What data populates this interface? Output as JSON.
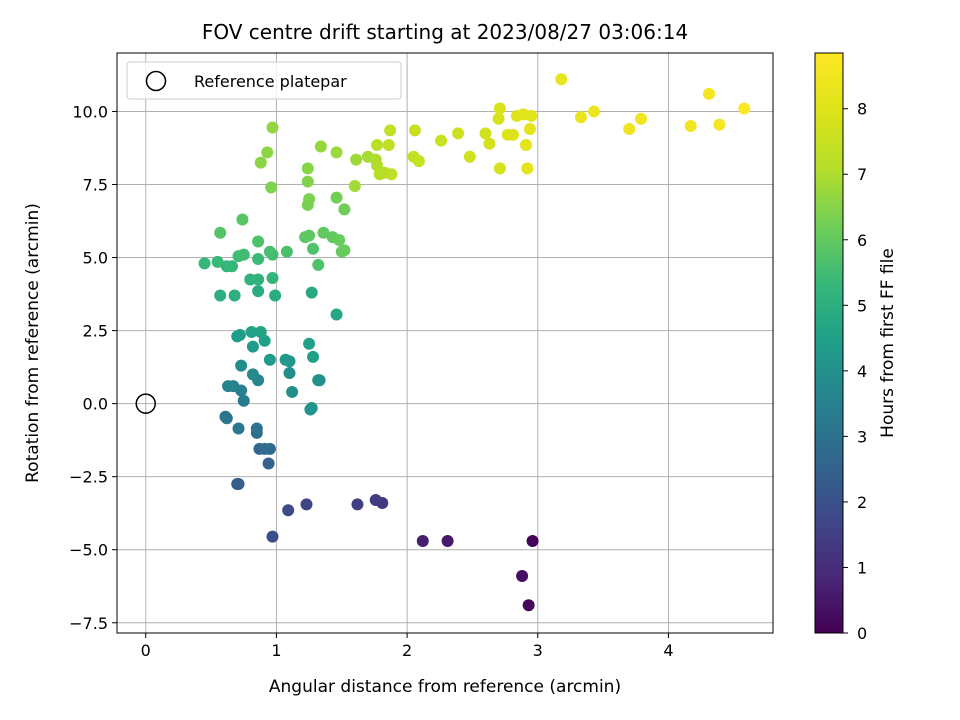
{
  "chart_data": {
    "type": "scatter",
    "title": "FOV centre drift starting at 2023/08/27 03:06:14",
    "xlabel": "Angular distance from reference (arcmin)",
    "ylabel": "Rotation from reference (arcmin)",
    "xlim": [
      -0.22,
      4.8
    ],
    "ylim": [
      -7.85,
      12.0
    ],
    "xticks": [
      0,
      1,
      2,
      3,
      4
    ],
    "xtick_labels": [
      "0",
      "1",
      "2",
      "3",
      "4"
    ],
    "yticks": [
      -7.5,
      -5.0,
      -2.5,
      0.0,
      2.5,
      5.0,
      7.5,
      10.0
    ],
    "ytick_labels": [
      "−7.5",
      "−5.0",
      "−2.5",
      "0.0",
      "2.5",
      "5.0",
      "7.5",
      "10.0"
    ],
    "grid": true,
    "legend": {
      "placement": "top-left",
      "entries": [
        "Reference platepar"
      ]
    },
    "reference_point": {
      "x": 0.0,
      "y": 0.0
    },
    "colorbar": {
      "label": "Hours from first FF file",
      "colormap": "viridis",
      "range": [
        0,
        8.85
      ],
      "ticks": [
        0,
        1,
        2,
        3,
        4,
        5,
        6,
        7,
        8
      ],
      "tick_labels": [
        "0",
        "1",
        "2",
        "3",
        "4",
        "5",
        "6",
        "7",
        "8"
      ]
    },
    "points": [
      [
        2.96,
        -4.7,
        0.1
      ],
      [
        2.93,
        -6.9,
        0.2
      ],
      [
        2.88,
        -5.9,
        0.3
      ],
      [
        2.31,
        -4.7,
        0.6
      ],
      [
        2.12,
        -4.7,
        0.7
      ],
      [
        1.81,
        -3.4,
        1.3
      ],
      [
        1.76,
        -3.3,
        1.4
      ],
      [
        1.62,
        -3.45,
        1.5
      ],
      [
        1.23,
        -3.45,
        1.7
      ],
      [
        1.09,
        -3.65,
        1.8
      ],
      [
        0.97,
        -4.55,
        1.9
      ],
      [
        0.7,
        -2.75,
        2.3
      ],
      [
        0.71,
        -2.75,
        2.4
      ],
      [
        0.94,
        -2.05,
        2.5
      ],
      [
        0.87,
        -1.55,
        2.6
      ],
      [
        0.95,
        -1.55,
        2.7
      ],
      [
        0.91,
        -1.55,
        2.8
      ],
      [
        0.85,
        -1.0,
        2.9
      ],
      [
        0.85,
        -0.85,
        3.0
      ],
      [
        0.61,
        -0.45,
        3.0
      ],
      [
        0.62,
        -0.5,
        3.1
      ],
      [
        0.71,
        -0.85,
        3.2
      ],
      [
        0.75,
        0.1,
        3.3
      ],
      [
        0.73,
        0.45,
        3.4
      ],
      [
        0.67,
        0.6,
        3.5
      ],
      [
        0.63,
        0.6,
        3.6
      ],
      [
        0.86,
        0.8,
        3.7
      ],
      [
        0.82,
        1.0,
        3.8
      ],
      [
        0.73,
        1.3,
        3.9
      ],
      [
        1.1,
        1.05,
        3.9
      ],
      [
        1.12,
        0.4,
        3.95
      ],
      [
        1.33,
        0.8,
        4.0
      ],
      [
        1.32,
        0.8,
        4.0
      ],
      [
        1.27,
        -0.15,
        4.1
      ],
      [
        1.26,
        -0.2,
        4.15
      ],
      [
        1.1,
        1.45,
        4.2
      ],
      [
        1.07,
        1.5,
        4.25
      ],
      [
        0.95,
        1.5,
        4.3
      ],
      [
        0.82,
        1.95,
        4.3
      ],
      [
        0.7,
        2.3,
        4.4
      ],
      [
        0.72,
        2.35,
        4.4
      ],
      [
        1.28,
        1.6,
        4.45
      ],
      [
        1.25,
        2.05,
        4.5
      ],
      [
        0.91,
        2.15,
        4.5
      ],
      [
        0.88,
        2.45,
        4.6
      ],
      [
        0.81,
        2.45,
        4.6
      ],
      [
        1.46,
        3.05,
        4.7
      ],
      [
        1.27,
        3.8,
        4.8
      ],
      [
        0.86,
        3.85,
        4.9
      ],
      [
        0.99,
        3.7,
        4.9
      ],
      [
        0.68,
        3.7,
        5.0
      ],
      [
        0.57,
        3.7,
        5.0
      ],
      [
        0.8,
        4.25,
        5.1
      ],
      [
        0.86,
        4.25,
        5.1
      ],
      [
        0.97,
        4.3,
        5.2
      ],
      [
        0.62,
        4.7,
        5.2
      ],
      [
        0.66,
        4.7,
        5.3
      ],
      [
        0.45,
        4.8,
        5.3
      ],
      [
        0.55,
        4.85,
        5.35
      ],
      [
        0.86,
        4.95,
        5.4
      ],
      [
        0.71,
        5.05,
        5.45
      ],
      [
        0.75,
        5.1,
        5.5
      ],
      [
        0.97,
        5.1,
        5.55
      ],
      [
        0.95,
        5.2,
        5.6
      ],
      [
        1.08,
        5.2,
        5.65
      ],
      [
        0.86,
        5.55,
        5.7
      ],
      [
        1.32,
        4.75,
        5.7
      ],
      [
        1.28,
        5.3,
        5.75
      ],
      [
        0.57,
        5.85,
        5.8
      ],
      [
        0.74,
        6.3,
        5.85
      ],
      [
        1.22,
        5.7,
        5.9
      ],
      [
        1.25,
        5.75,
        5.95
      ],
      [
        1.36,
        5.85,
        6.0
      ],
      [
        1.43,
        5.7,
        6.0
      ],
      [
        1.5,
        5.2,
        6.05
      ],
      [
        1.52,
        5.25,
        6.1
      ],
      [
        1.48,
        5.6,
        6.1
      ],
      [
        1.52,
        6.65,
        6.2
      ],
      [
        1.46,
        7.05,
        6.25
      ],
      [
        1.24,
        6.8,
        6.3
      ],
      [
        1.25,
        7.0,
        6.35
      ],
      [
        0.96,
        7.4,
        6.4
      ],
      [
        1.24,
        7.6,
        6.45
      ],
      [
        1.24,
        8.05,
        6.5
      ],
      [
        0.88,
        8.25,
        6.55
      ],
      [
        0.93,
        8.6,
        6.6
      ],
      [
        0.97,
        9.45,
        6.65
      ],
      [
        1.34,
        8.8,
        6.7
      ],
      [
        1.46,
        8.6,
        6.75
      ],
      [
        1.61,
        8.35,
        6.8
      ],
      [
        1.6,
        7.45,
        6.85
      ],
      [
        1.7,
        8.45,
        6.9
      ],
      [
        1.76,
        8.35,
        7.0
      ],
      [
        1.77,
        8.15,
        7.05
      ],
      [
        1.79,
        7.85,
        7.1
      ],
      [
        1.83,
        7.9,
        7.15
      ],
      [
        1.77,
        8.85,
        7.2
      ],
      [
        1.88,
        7.85,
        7.25
      ],
      [
        1.86,
        8.85,
        7.3
      ],
      [
        1.87,
        9.35,
        7.35
      ],
      [
        2.05,
        8.45,
        7.4
      ],
      [
        2.09,
        8.3,
        7.45
      ],
      [
        2.06,
        9.35,
        7.5
      ],
      [
        2.26,
        9.0,
        7.55
      ],
      [
        2.39,
        9.25,
        7.6
      ],
      [
        2.48,
        8.45,
        7.65
      ],
      [
        2.6,
        9.25,
        7.7
      ],
      [
        2.63,
        8.9,
        7.75
      ],
      [
        2.71,
        8.05,
        7.8
      ],
      [
        2.7,
        9.75,
        7.85
      ],
      [
        2.71,
        10.1,
        7.9
      ],
      [
        2.77,
        9.2,
        7.95
      ],
      [
        2.81,
        9.2,
        8.0
      ],
      [
        2.84,
        9.85,
        8.05
      ],
      [
        2.89,
        9.9,
        8.1
      ],
      [
        2.95,
        9.85,
        8.1
      ],
      [
        2.91,
        8.85,
        8.15
      ],
      [
        2.92,
        8.05,
        8.2
      ],
      [
        2.94,
        9.4,
        8.2
      ],
      [
        3.18,
        11.1,
        8.3
      ],
      [
        3.33,
        9.8,
        8.35
      ],
      [
        3.43,
        10.0,
        8.4
      ],
      [
        3.7,
        9.4,
        8.45
      ],
      [
        3.79,
        9.75,
        8.5
      ],
      [
        4.17,
        9.5,
        8.55
      ],
      [
        4.31,
        10.6,
        8.6
      ],
      [
        4.39,
        9.55,
        8.65
      ],
      [
        4.58,
        10.1,
        8.8
      ]
    ]
  }
}
